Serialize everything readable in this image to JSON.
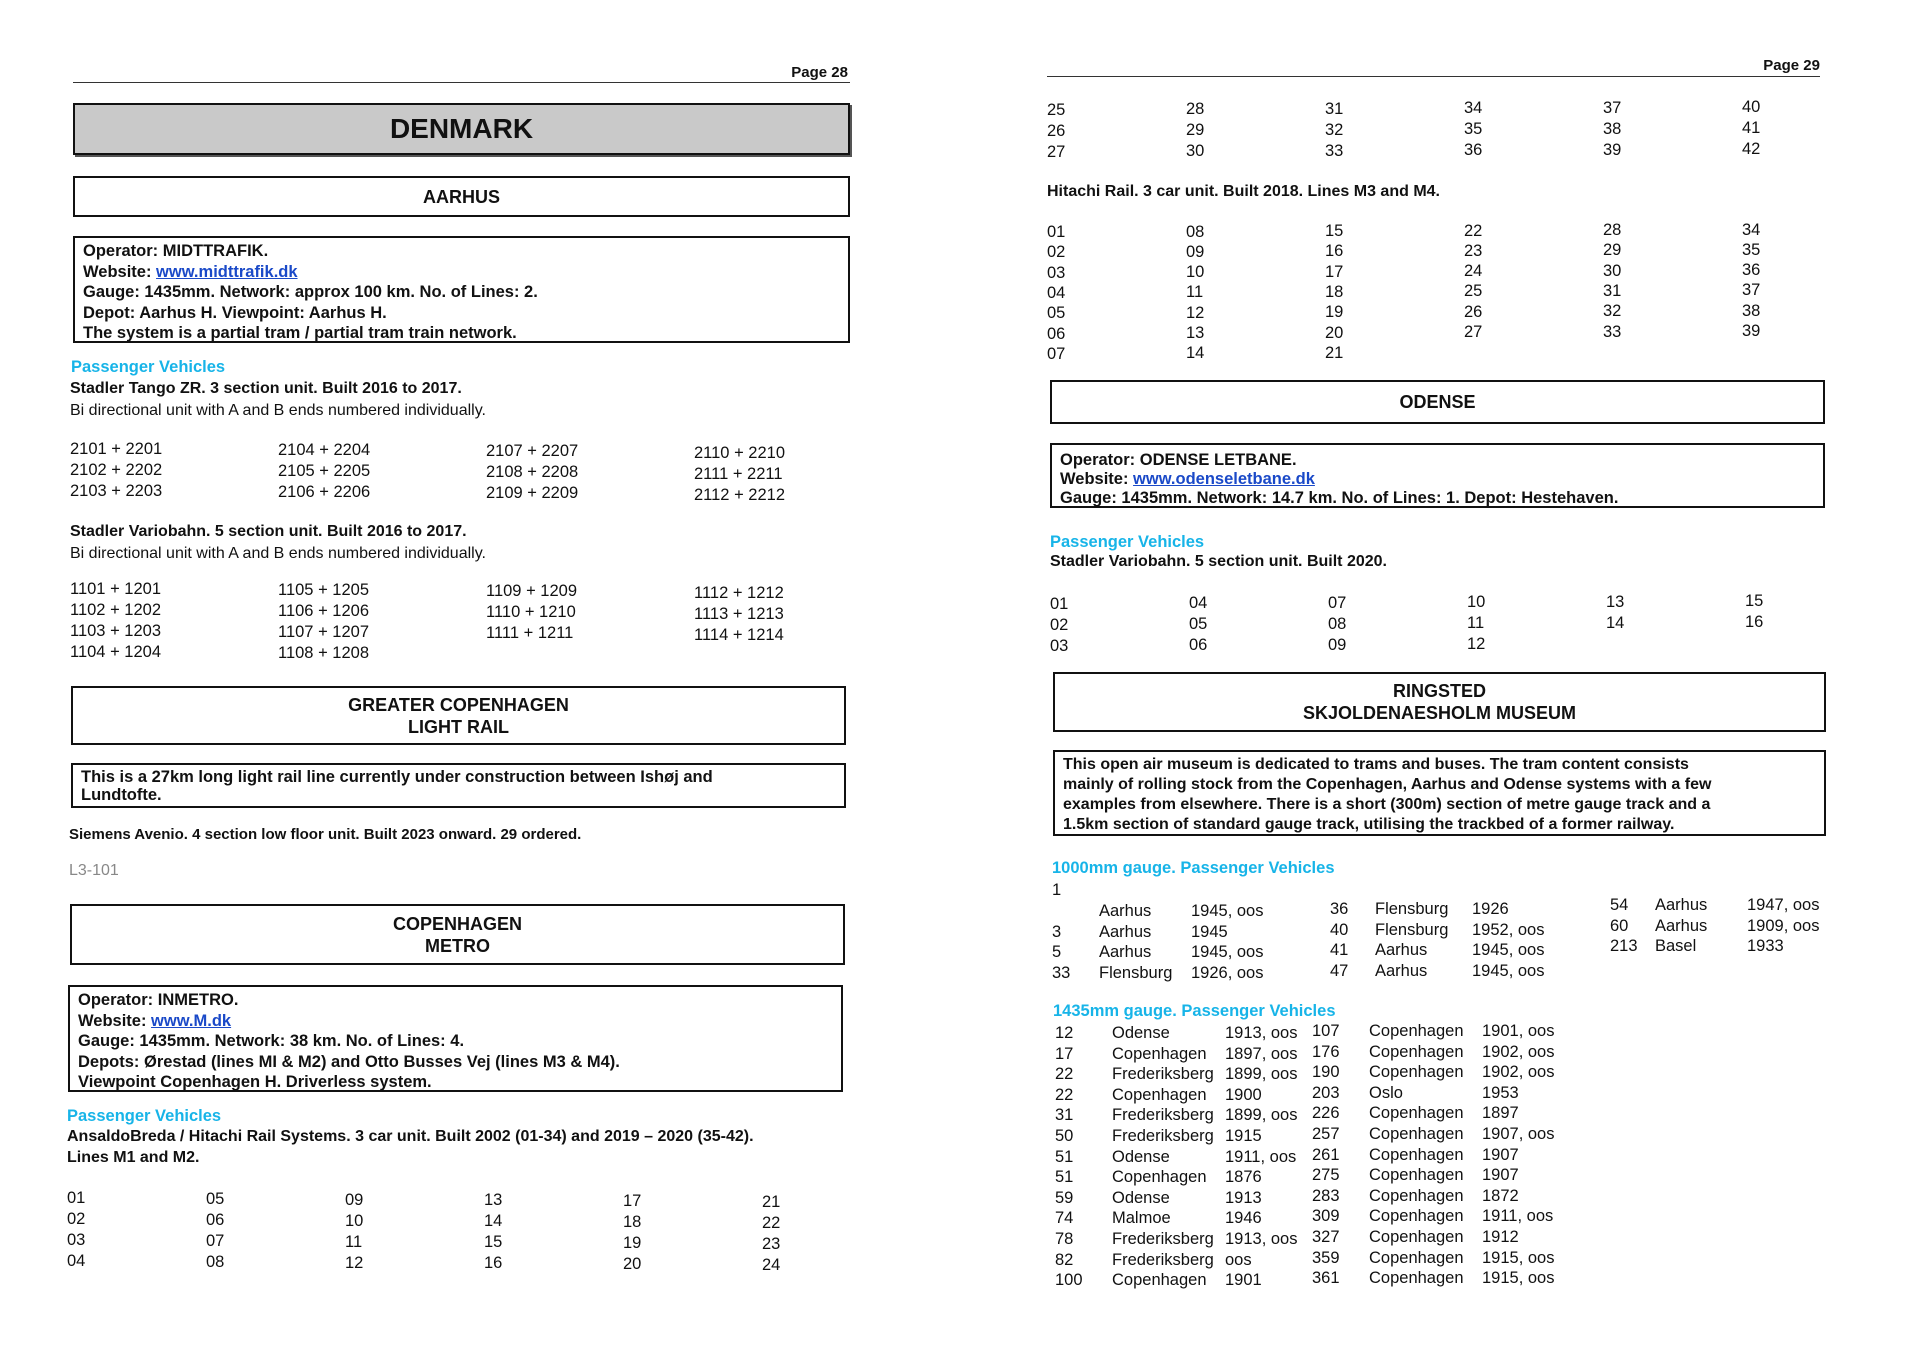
{
  "left": {
    "page": "Page 28",
    "country": "DENMARK",
    "aarhus": {
      "title": "AARHUS",
      "info": [
        "Operator: MIDTTRAFIK.",
        "Website: ",
        "Gauge: 1435mm. Network: approx 100 km. No. of Lines: 2.",
        "Depot: Aarhus H. Viewpoint: Aarhus H.",
        "The system is a partial tram / partial tram train network."
      ],
      "website": "www.midttrafik.dk",
      "pv": "Passenger Vehicles",
      "tango": {
        "title": "Stadler Tango ZR. 3 section unit. Built 2016 to 2017.",
        "note": "Bi directional unit with A and B ends numbered individually.",
        "cols": [
          [
            "2101 + 2201",
            "2102 + 2202",
            "2103 + 2203"
          ],
          [
            "2104 + 2204",
            "2105 + 2205",
            "2106 + 2206"
          ],
          [
            "2107 + 2207",
            "2108 + 2208",
            "2109 + 2209"
          ],
          [
            "2110 + 2210",
            "2111 + 2211",
            "2112 + 2212"
          ]
        ]
      },
      "vario": {
        "title": "Stadler Variobahn. 5 section unit. Built 2016 to 2017.",
        "note": "Bi directional unit with A and B ends numbered individually.",
        "cols": [
          [
            "1101 + 1201",
            "1102 + 1202",
            "1103 + 1203",
            "1104 + 1204"
          ],
          [
            "1105 + 1205",
            "1106 + 1206",
            "1107 + 1207",
            "1108 + 1208"
          ],
          [
            "1109 + 1209",
            "1110 + 1210",
            "1111 + 1211"
          ],
          [
            "1112 + 1212",
            "1113 + 1213",
            "1114 + 1214"
          ]
        ]
      }
    },
    "gclr": {
      "title1": "GREATER COPENHAGEN",
      "title2": "LIGHT RAIL",
      "info": [
        "This is a 27km long light rail line currently under construction between Ishøj and",
        "Lundtofte."
      ],
      "siemens": "Siemens Avenio. 4 section low floor unit. Built 2023 onward. 29 ordered.",
      "l3": "L3-101"
    },
    "metro": {
      "title1": "COPENHAGEN",
      "title2": "METRO",
      "info": [
        "Operator: INMETRO.",
        "Website: ",
        "Gauge: 1435mm. Network: 38 km. No. of Lines: 4.",
        "Depots: Ørestad (lines MI & M2) and Otto Busses Vej (lines M3 & M4).",
        "Viewpoint Copenhagen H. Driverless system."
      ],
      "website": "www.M.dk",
      "pv": "Passenger Vehicles",
      "ansaldo1": "AnsaldoBreda / Hitachi Rail Systems. 3 car unit. Built 2002 (01-34) and 2019 – 2020 (35-42).",
      "ansaldo2": "Lines M1 and M2.",
      "cols": [
        [
          "01",
          "02",
          "03",
          "04"
        ],
        [
          "05",
          "06",
          "07",
          "08"
        ],
        [
          "09",
          "10",
          "11",
          "12"
        ],
        [
          "13",
          "14",
          "15",
          "16"
        ],
        [
          "17",
          "18",
          "19",
          "20"
        ],
        [
          "21",
          "22",
          "23",
          "24"
        ]
      ]
    }
  },
  "right": {
    "page": "Page 29",
    "metro_cont": [
      [
        "25",
        "26",
        "27"
      ],
      [
        "28",
        "29",
        "30"
      ],
      [
        "31",
        "32",
        "33"
      ],
      [
        "34",
        "35",
        "36"
      ],
      [
        "37",
        "38",
        "39"
      ],
      [
        "40",
        "41",
        "42"
      ]
    ],
    "hitachi": {
      "title": "Hitachi Rail. 3 car unit. Built 2018. Lines M3 and M4.",
      "cols": [
        [
          "01",
          "02",
          "03",
          "04",
          "05",
          "06",
          "07"
        ],
        [
          "08",
          "09",
          "10",
          "11",
          "12",
          "13",
          "14"
        ],
        [
          "15",
          "16",
          "17",
          "18",
          "19",
          "20",
          "21"
        ],
        [
          "22",
          "23",
          "24",
          "25",
          "26",
          "27"
        ],
        [
          "28",
          "29",
          "30",
          "31",
          "32",
          "33"
        ],
        [
          "34",
          "35",
          "36",
          "37",
          "38",
          "39"
        ]
      ]
    },
    "odense": {
      "title": "ODENSE",
      "info": [
        "Operator: ODENSE LETBANE.",
        "Website: ",
        "Gauge: 1435mm. Network: 14.7 km. No. of Lines: 1. Depot: Hestehaven."
      ],
      "website": "www.odenseletbane.dk",
      "pv": "Passenger Vehicles",
      "stadler": "Stadler Variobahn. 5 section unit. Built 2020.",
      "cols": [
        [
          "01",
          "02",
          "03"
        ],
        [
          "04",
          "05",
          "06"
        ],
        [
          "07",
          "08",
          "09"
        ],
        [
          "10",
          "11",
          "12"
        ],
        [
          "13",
          "14"
        ],
        [
          "15",
          "16"
        ]
      ]
    },
    "ringsted": {
      "title1": "RINGSTED",
      "title2": "SKJOLDENAESHOLM MUSEUM",
      "info": [
        "This open air museum is dedicated to trams and buses. The tram content consists",
        "mainly of rolling stock from the Copenhagen, Aarhus and Odense systems with a few",
        "examples from elsewhere. There is a short (300m) section of metre gauge track and a",
        "1.5km section of standard gauge track, utilising the trackbed of a former railway."
      ],
      "g1000": "1000mm gauge. Passenger Vehicles",
      "g1000_first": "1",
      "g1000_rows": [
        [
          [
            "",
            "Aarhus",
            "1945, oos"
          ],
          [
            "3",
            "Aarhus",
            "1945"
          ],
          [
            "5",
            "Aarhus",
            "1945, oos"
          ],
          [
            "33",
            "Flensburg",
            "1926, oos"
          ]
        ],
        [
          [
            "36",
            "Flensburg",
            "1926"
          ],
          [
            "40",
            "Flensburg",
            "1952, oos"
          ],
          [
            "41",
            "Aarhus",
            "1945, oos"
          ],
          [
            "47",
            "Aarhus",
            "1945, oos"
          ]
        ],
        [
          [
            "54",
            "Aarhus",
            "1947, oos"
          ],
          [
            "60",
            "Aarhus",
            "1909, oos"
          ],
          [
            "213",
            "Basel",
            "1933"
          ]
        ]
      ],
      "g1435": "1435mm gauge. Passenger Vehicles",
      "g1435_rows": [
        [
          [
            "12",
            "Odense",
            "1913, oos"
          ],
          [
            "17",
            "Copenhagen",
            "1897, oos"
          ],
          [
            "22",
            "Frederiksberg",
            "1899, oos"
          ],
          [
            "22",
            "Copenhagen",
            "1900"
          ],
          [
            "31",
            "Frederiksberg",
            "1899, oos"
          ],
          [
            "50",
            "Frederiksberg",
            "1915"
          ],
          [
            "51",
            "Odense",
            "1911, oos"
          ],
          [
            "51",
            "Copenhagen",
            "1876"
          ],
          [
            "59",
            "Odense",
            "1913"
          ],
          [
            "74",
            "Malmoe",
            "1946"
          ],
          [
            "78",
            "Frederiksberg",
            "1913, oos"
          ],
          [
            "82",
            "Frederiksberg",
            "oos"
          ],
          [
            "100",
            "Copenhagen",
            "1901"
          ]
        ],
        [
          [
            "107",
            "Copenhagen",
            "1901, oos"
          ],
          [
            "176",
            "Copenhagen",
            "1902, oos"
          ],
          [
            "190",
            "Copenhagen",
            "1902, oos"
          ],
          [
            "203",
            "Oslo",
            "1953"
          ],
          [
            "226",
            "Copenhagen",
            "1897"
          ],
          [
            "257",
            "Copenhagen",
            "1907, oos"
          ],
          [
            "261",
            "Copenhagen",
            "1907"
          ],
          [
            "275",
            "Copenhagen",
            "1907"
          ],
          [
            "283",
            "Copenhagen",
            "1872"
          ],
          [
            "309",
            "Copenhagen",
            "1911, oos"
          ],
          [
            "327",
            "Copenhagen",
            "1912"
          ],
          [
            "359",
            "Copenhagen",
            "1915, oos"
          ],
          [
            "361",
            "Copenhagen",
            "1915, oos"
          ]
        ]
      ]
    }
  },
  "colors": {
    "accent": "#17b4e8",
    "link": "#1a49c8",
    "header_bg": "#c9c9c9"
  }
}
